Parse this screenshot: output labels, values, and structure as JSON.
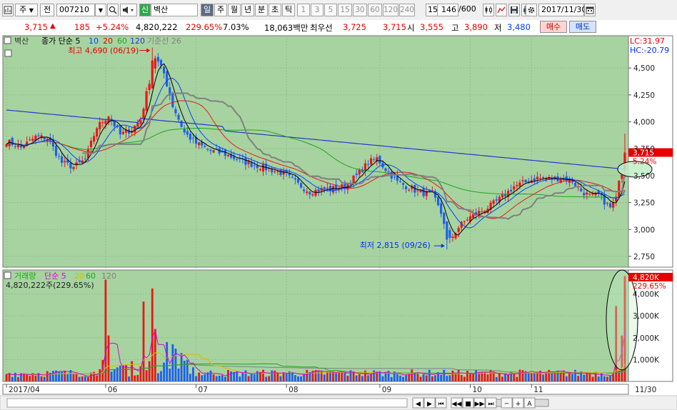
{
  "toolbar": {
    "market_label": "주",
    "prev_label": "전",
    "code": "007210",
    "badge": "신",
    "name": "벽산",
    "periods": [
      "일",
      "주",
      "월",
      "년",
      "분",
      "초",
      "틱"
    ],
    "active_period": "일",
    "intervals": [
      "1",
      "3",
      "5",
      "15",
      "30",
      "60",
      "120",
      "240"
    ],
    "interval_value": "15",
    "count": "146",
    "count_total": "/600",
    "date": "2017/11/30",
    "icons": [
      "chart-icon",
      "search-icon",
      "speaker-icon",
      "candle-icon",
      "line-tool-icon",
      "save-icon",
      "print-icon",
      "settings-icon",
      "calendar-icon"
    ]
  },
  "quote": {
    "price": "3,715",
    "change_arrow": "▲",
    "change": "185",
    "change_pct": "+5.24%",
    "volume": "4,820,222",
    "volume_ratio": "229.65%",
    "turnover": "7.03%",
    "amount": "18,063백만",
    "best_ask_label": "최우선",
    "best_ask": "3,725",
    "best_bid": "3,715",
    "open_label": "시",
    "open": "3,555",
    "high_label": "고",
    "high": "3,890",
    "low_label": "저",
    "low": "3,480",
    "buy_label": "매수",
    "sell_label": "매도"
  },
  "colors": {
    "chart_bg": "#a7d3a0",
    "up": "#e8171b",
    "down": "#1e5ef0",
    "ma5": "#e8171b",
    "ma20": "#e8171b",
    "ma60": "#1fa51f",
    "ma120": "#2a35d0",
    "base_line": "#808080"
  },
  "chart_data": [
    {
      "type": "candlestick",
      "legend": {
        "name": "벽산",
        "items": [
          {
            "label": "종가 단순 5",
            "color": "#000000"
          },
          {
            "label": "10",
            "color": "#0046ff"
          },
          {
            "label": "20",
            "color": "#e60000"
          },
          {
            "label": "60",
            "color": "#1fa51f"
          },
          {
            "label": "120",
            "color": "#2a35d0"
          },
          {
            "label": "기준선 26",
            "color": "#808080"
          }
        ]
      },
      "right_labels": {
        "lc": "LC:31.97",
        "hc": "HC:-20.79"
      },
      "ylim": [
        2650,
        4800
      ],
      "y_ticks": [
        "4,500",
        "4,250",
        "4,000",
        "3,750",
        "3,500",
        "3,250",
        "3,000",
        "2,750"
      ],
      "y_tick_values": [
        4500,
        4250,
        4000,
        3750,
        3500,
        3250,
        3000,
        2750
      ],
      "x_ticks": [
        {
          "label": "2017/04",
          "index": 0
        },
        {
          "label": "06",
          "index": 34
        },
        {
          "label": "07",
          "index": 65
        },
        {
          "label": "08",
          "index": 96
        },
        {
          "label": "09",
          "index": 128
        },
        {
          "label": "10",
          "index": 159
        },
        {
          "label": "11",
          "index": 180
        },
        {
          "label": "11/30",
          "index": 213
        }
      ],
      "current_price_label": "3,715",
      "current_change_label": "5.24%",
      "annotations": {
        "high": {
          "text": "최고 4,690 (06/19)",
          "index": 50,
          "value": 4690
        },
        "low": {
          "text": "최저 2,815 (09/26)",
          "index": 151,
          "value": 2815
        }
      },
      "anchors": [
        [
          0,
          3820
        ],
        [
          5,
          3760
        ],
        [
          10,
          3860
        ],
        [
          14,
          3850
        ],
        [
          19,
          3620
        ],
        [
          23,
          3580
        ],
        [
          27,
          3650
        ],
        [
          31,
          3950
        ],
        [
          35,
          4060
        ],
        [
          39,
          3880
        ],
        [
          43,
          3930
        ],
        [
          46,
          4020
        ],
        [
          49,
          4380
        ],
        [
          51,
          4600
        ],
        [
          54,
          4450
        ],
        [
          57,
          4150
        ],
        [
          61,
          3900
        ],
        [
          65,
          3800
        ],
        [
          70,
          3730
        ],
        [
          75,
          3700
        ],
        [
          80,
          3640
        ],
        [
          85,
          3600
        ],
        [
          90,
          3560
        ],
        [
          95,
          3520
        ],
        [
          100,
          3420
        ],
        [
          104,
          3350
        ],
        [
          108,
          3370
        ],
        [
          112,
          3380
        ],
        [
          116,
          3400
        ],
        [
          120,
          3500
        ],
        [
          124,
          3620
        ],
        [
          127,
          3660
        ],
        [
          130,
          3560
        ],
        [
          134,
          3440
        ],
        [
          138,
          3390
        ],
        [
          142,
          3340
        ],
        [
          146,
          3330
        ],
        [
          149,
          3150
        ],
        [
          152,
          2900
        ],
        [
          155,
          3020
        ],
        [
          158,
          3100
        ],
        [
          162,
          3160
        ],
        [
          166,
          3220
        ],
        [
          170,
          3300
        ],
        [
          174,
          3400
        ],
        [
          178,
          3440
        ],
        [
          182,
          3480
        ],
        [
          186,
          3470
        ],
        [
          190,
          3480
        ],
        [
          194,
          3450
        ],
        [
          197,
          3360
        ],
        [
          200,
          3310
        ],
        [
          203,
          3320
        ],
        [
          207,
          3200
        ],
        [
          209,
          3280
        ],
        [
          210,
          3480
        ],
        [
          211,
          3530
        ],
        [
          212,
          3715
        ]
      ],
      "last_candle": {
        "open": 3555,
        "high": 3890,
        "low": 3480,
        "close": 3715
      },
      "volume": {
        "legend": {
          "name": "거래량",
          "items": [
            {
              "label": "단순 5",
              "color": "#e000d0"
            },
            {
              "label": "20",
              "color": "#d0c000"
            },
            {
              "label": "60",
              "color": "#1fa51f"
            },
            {
              "label": "120",
              "color": "#808080"
            }
          ]
        },
        "current_label": "4,820,222주(229.65%)",
        "right_value_label": "4,820K",
        "right_pct_label": "229.65%",
        "ylim": [
          0,
          4900000
        ],
        "y_ticks": [
          "4,000K",
          "3,000K",
          "2,000K",
          "1,000K"
        ],
        "y_tick_values": [
          4000000,
          3000000,
          2000000,
          1000000
        ],
        "spikes": [
          {
            "index": 34,
            "value": 4650000
          },
          {
            "index": 35,
            "value": 2100000
          },
          {
            "index": 47,
            "value": 3650000
          },
          {
            "index": 50,
            "value": 4250000
          },
          {
            "index": 51,
            "value": 2400000
          },
          {
            "index": 55,
            "value": 1800000
          },
          {
            "index": 57,
            "value": 1700000
          },
          {
            "index": 60,
            "value": 1300000
          },
          {
            "index": 58,
            "value": 1500000
          },
          {
            "index": 209,
            "value": 3450000
          },
          {
            "index": 211,
            "value": 2100000
          },
          {
            "index": 212,
            "value": 4820000
          }
        ]
      }
    }
  ],
  "navigation": {
    "buttons": [
      "scroll-left",
      "scroll-right",
      "first",
      "prev",
      "stop",
      "next",
      "last",
      "zoom-out",
      "zoom-in",
      "reset"
    ],
    "labels": [
      "◀",
      "▶",
      "⏮",
      "◀◀",
      "■",
      "▶▶",
      "⏭",
      "─",
      "+",
      "A"
    ]
  }
}
